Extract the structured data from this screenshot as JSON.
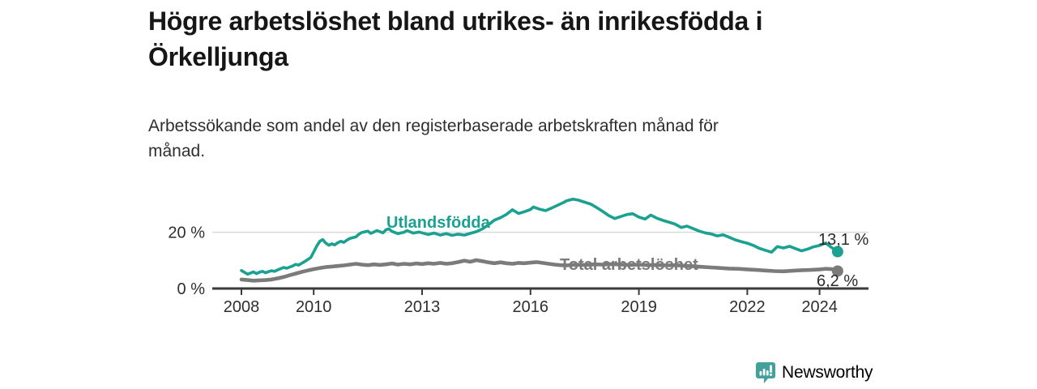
{
  "header": {
    "title_lines": [
      "Högre arbetslöshet bland utrikes- än inrikesfödda i",
      "Örkelljunga"
    ],
    "subtitle_lines": [
      "Arbetssökande som andel av den registerbaserade arbetskraften månad för",
      "månad."
    ]
  },
  "chart_data": {
    "type": "line",
    "title": "Högre arbetslöshet bland utrikes- än inrikesfödda i Örkelljunga",
    "subtitle": "Arbetssökande som andel av den registerbaserade arbetskraften månad för månad.",
    "xlabel": "",
    "ylabel": "",
    "unit": "%",
    "x_range": [
      2008,
      2024.6
    ],
    "ylim": [
      0,
      34
    ],
    "grid_color": "#dadada",
    "axis_color": "#3a3a3a",
    "tick_label_color": "#2e2e2e",
    "x_axis": {
      "ticks": [
        {
          "label": "2008",
          "year": 2008
        },
        {
          "label": "2010",
          "year": 2010
        },
        {
          "label": "2013",
          "year": 2013
        },
        {
          "label": "2016",
          "year": 2016
        },
        {
          "label": "2019",
          "year": 2019
        },
        {
          "label": "2022",
          "year": 2022
        },
        {
          "label": "2024",
          "year": 2024
        }
      ]
    },
    "y_axis": {
      "ticks": [
        {
          "label": "20 %",
          "value": 20
        },
        {
          "label": "0 %",
          "value": 0
        }
      ]
    },
    "series": [
      {
        "name": "Utlandsfödda",
        "color": "#1ba18f",
        "end_label": "13,1 %",
        "end_value": 13.1,
        "points": [
          [
            2008.0,
            6.4
          ],
          [
            2008.08,
            5.8
          ],
          [
            2008.17,
            5.1
          ],
          [
            2008.25,
            5.5
          ],
          [
            2008.33,
            5.9
          ],
          [
            2008.42,
            5.3
          ],
          [
            2008.5,
            5.8
          ],
          [
            2008.58,
            6.1
          ],
          [
            2008.67,
            5.6
          ],
          [
            2008.75,
            6.0
          ],
          [
            2008.83,
            6.3
          ],
          [
            2008.92,
            6.1
          ],
          [
            2009.0,
            6.6
          ],
          [
            2009.17,
            7.5
          ],
          [
            2009.25,
            7.2
          ],
          [
            2009.42,
            8.0
          ],
          [
            2009.5,
            8.6
          ],
          [
            2009.58,
            8.3
          ],
          [
            2009.75,
            9.6
          ],
          [
            2009.92,
            11.0
          ],
          [
            2010.0,
            13.0
          ],
          [
            2010.08,
            15.0
          ],
          [
            2010.17,
            16.8
          ],
          [
            2010.25,
            17.4
          ],
          [
            2010.33,
            16.2
          ],
          [
            2010.42,
            15.4
          ],
          [
            2010.5,
            15.9
          ],
          [
            2010.58,
            15.5
          ],
          [
            2010.67,
            16.3
          ],
          [
            2010.75,
            16.8
          ],
          [
            2010.83,
            16.4
          ],
          [
            2010.92,
            17.2
          ],
          [
            2011.0,
            17.8
          ],
          [
            2011.17,
            18.4
          ],
          [
            2011.25,
            19.3
          ],
          [
            2011.33,
            19.9
          ],
          [
            2011.5,
            20.4
          ],
          [
            2011.58,
            19.6
          ],
          [
            2011.75,
            20.6
          ],
          [
            2011.92,
            19.8
          ],
          [
            2012.0,
            20.9
          ],
          [
            2012.08,
            21.2
          ],
          [
            2012.17,
            20.3
          ],
          [
            2012.33,
            19.5
          ],
          [
            2012.5,
            20.0
          ],
          [
            2012.58,
            20.6
          ],
          [
            2012.75,
            19.7
          ],
          [
            2012.92,
            20.1
          ],
          [
            2013.0,
            19.8
          ],
          [
            2013.17,
            19.2
          ],
          [
            2013.33,
            19.7
          ],
          [
            2013.5,
            19.0
          ],
          [
            2013.67,
            19.5
          ],
          [
            2013.83,
            18.9
          ],
          [
            2014.0,
            19.3
          ],
          [
            2014.17,
            19.0
          ],
          [
            2014.33,
            19.6
          ],
          [
            2014.5,
            20.2
          ],
          [
            2014.67,
            21.2
          ],
          [
            2014.83,
            22.6
          ],
          [
            2015.0,
            24.3
          ],
          [
            2015.17,
            25.2
          ],
          [
            2015.33,
            26.3
          ],
          [
            2015.5,
            28.0
          ],
          [
            2015.67,
            26.7
          ],
          [
            2015.83,
            27.3
          ],
          [
            2016.0,
            28.1
          ],
          [
            2016.08,
            29.0
          ],
          [
            2016.25,
            28.2
          ],
          [
            2016.42,
            27.7
          ],
          [
            2016.58,
            28.6
          ],
          [
            2016.75,
            29.6
          ],
          [
            2016.92,
            30.6
          ],
          [
            2017.0,
            31.2
          ],
          [
            2017.17,
            31.8
          ],
          [
            2017.33,
            31.4
          ],
          [
            2017.5,
            30.7
          ],
          [
            2017.67,
            30.0
          ],
          [
            2017.83,
            28.8
          ],
          [
            2018.0,
            27.4
          ],
          [
            2018.17,
            25.9
          ],
          [
            2018.33,
            24.9
          ],
          [
            2018.5,
            25.6
          ],
          [
            2018.67,
            26.3
          ],
          [
            2018.83,
            26.6
          ],
          [
            2019.0,
            25.4
          ],
          [
            2019.17,
            24.7
          ],
          [
            2019.33,
            26.1
          ],
          [
            2019.5,
            25.0
          ],
          [
            2019.67,
            24.2
          ],
          [
            2019.83,
            23.6
          ],
          [
            2020.0,
            22.9
          ],
          [
            2020.17,
            21.7
          ],
          [
            2020.33,
            22.2
          ],
          [
            2020.5,
            21.3
          ],
          [
            2020.67,
            20.4
          ],
          [
            2020.83,
            19.8
          ],
          [
            2021.0,
            19.4
          ],
          [
            2021.17,
            18.7
          ],
          [
            2021.33,
            19.1
          ],
          [
            2021.5,
            18.2
          ],
          [
            2021.67,
            17.3
          ],
          [
            2021.83,
            16.7
          ],
          [
            2022.0,
            16.1
          ],
          [
            2022.17,
            15.3
          ],
          [
            2022.33,
            14.3
          ],
          [
            2022.5,
            13.6
          ],
          [
            2022.67,
            12.9
          ],
          [
            2022.83,
            14.9
          ],
          [
            2023.0,
            14.4
          ],
          [
            2023.17,
            15.0
          ],
          [
            2023.33,
            14.2
          ],
          [
            2023.5,
            13.4
          ],
          [
            2023.67,
            14.0
          ],
          [
            2023.83,
            14.8
          ],
          [
            2024.0,
            15.3
          ],
          [
            2024.17,
            16.2
          ],
          [
            2024.33,
            14.6
          ],
          [
            2024.5,
            13.1
          ]
        ]
      },
      {
        "name": "Total arbetslöshet",
        "color": "#7b7b7b",
        "end_label": "6,2 %",
        "end_value": 6.2,
        "points": [
          [
            2008.0,
            3.2
          ],
          [
            2008.17,
            3.0
          ],
          [
            2008.33,
            2.8
          ],
          [
            2008.5,
            2.9
          ],
          [
            2008.67,
            3.0
          ],
          [
            2008.83,
            3.2
          ],
          [
            2009.0,
            3.6
          ],
          [
            2009.17,
            4.1
          ],
          [
            2009.33,
            4.7
          ],
          [
            2009.5,
            5.3
          ],
          [
            2009.67,
            5.9
          ],
          [
            2009.83,
            6.4
          ],
          [
            2010.0,
            6.9
          ],
          [
            2010.17,
            7.3
          ],
          [
            2010.33,
            7.6
          ],
          [
            2010.5,
            7.8
          ],
          [
            2010.67,
            8.0
          ],
          [
            2010.83,
            8.2
          ],
          [
            2011.0,
            8.5
          ],
          [
            2011.17,
            8.8
          ],
          [
            2011.33,
            8.5
          ],
          [
            2011.5,
            8.3
          ],
          [
            2011.67,
            8.6
          ],
          [
            2011.83,
            8.4
          ],
          [
            2012.0,
            8.6
          ],
          [
            2012.17,
            8.9
          ],
          [
            2012.33,
            8.5
          ],
          [
            2012.5,
            8.8
          ],
          [
            2012.67,
            8.6
          ],
          [
            2012.83,
            8.9
          ],
          [
            2013.0,
            8.7
          ],
          [
            2013.17,
            9.0
          ],
          [
            2013.33,
            8.8
          ],
          [
            2013.5,
            9.1
          ],
          [
            2013.67,
            8.8
          ],
          [
            2013.83,
            9.0
          ],
          [
            2014.0,
            9.4
          ],
          [
            2014.17,
            9.9
          ],
          [
            2014.33,
            9.5
          ],
          [
            2014.5,
            10.1
          ],
          [
            2014.67,
            9.7
          ],
          [
            2014.83,
            9.3
          ],
          [
            2015.0,
            9.0
          ],
          [
            2015.17,
            9.3
          ],
          [
            2015.33,
            9.0
          ],
          [
            2015.5,
            8.8
          ],
          [
            2015.67,
            9.1
          ],
          [
            2015.83,
            9.0
          ],
          [
            2016.0,
            9.2
          ],
          [
            2016.17,
            9.4
          ],
          [
            2016.33,
            9.1
          ],
          [
            2016.5,
            8.8
          ],
          [
            2016.67,
            8.5
          ],
          [
            2016.83,
            8.3
          ],
          [
            2017.0,
            8.2
          ],
          [
            2017.25,
            8.5
          ],
          [
            2017.5,
            8.4
          ],
          [
            2017.75,
            8.6
          ],
          [
            2018.0,
            8.5
          ],
          [
            2018.25,
            8.7
          ],
          [
            2018.5,
            8.5
          ],
          [
            2018.75,
            8.4
          ],
          [
            2019.0,
            8.5
          ],
          [
            2019.25,
            8.3
          ],
          [
            2019.5,
            8.4
          ],
          [
            2019.75,
            8.2
          ],
          [
            2020.0,
            8.3
          ],
          [
            2020.25,
            8.1
          ],
          [
            2020.5,
            7.9
          ],
          [
            2020.75,
            7.7
          ],
          [
            2021.0,
            7.5
          ],
          [
            2021.25,
            7.3
          ],
          [
            2021.5,
            7.1
          ],
          [
            2021.75,
            7.0
          ],
          [
            2022.0,
            6.8
          ],
          [
            2022.25,
            6.6
          ],
          [
            2022.5,
            6.4
          ],
          [
            2022.75,
            6.2
          ],
          [
            2023.0,
            6.1
          ],
          [
            2023.25,
            6.3
          ],
          [
            2023.5,
            6.5
          ],
          [
            2023.75,
            6.6
          ],
          [
            2024.0,
            6.8
          ],
          [
            2024.17,
            7.0
          ],
          [
            2024.33,
            6.9
          ],
          [
            2024.5,
            6.2
          ]
        ]
      }
    ],
    "legend_position": "inline-labels"
  },
  "footer": {
    "brand": "Newsworthy",
    "brand_color": "#3e9d96"
  }
}
